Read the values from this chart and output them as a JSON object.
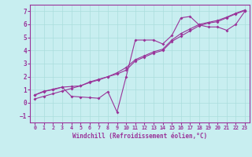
{
  "bg_color": "#c8eef0",
  "grid_color": "#aadddd",
  "line_color": "#993399",
  "xlabel": "Windchill (Refroidissement éolien,°C)",
  "xlim": [
    -0.5,
    23.5
  ],
  "ylim": [
    -1.5,
    7.5
  ],
  "xticks": [
    0,
    1,
    2,
    3,
    4,
    5,
    6,
    7,
    8,
    9,
    10,
    11,
    12,
    13,
    14,
    15,
    16,
    17,
    18,
    19,
    20,
    21,
    22,
    23
  ],
  "yticks": [
    -1,
    0,
    1,
    2,
    3,
    4,
    5,
    6,
    7
  ],
  "line1_x": [
    0,
    1,
    2,
    3,
    4,
    5,
    6,
    7,
    8,
    9,
    10,
    11,
    12,
    13,
    14,
    15,
    16,
    17,
    18,
    19,
    20,
    21,
    22,
    23
  ],
  "line1_y": [
    0.6,
    0.9,
    1.0,
    1.2,
    0.5,
    0.45,
    0.4,
    0.35,
    0.85,
    -0.7,
    2.0,
    4.8,
    4.8,
    4.8,
    4.5,
    5.15,
    6.5,
    6.6,
    5.95,
    5.8,
    5.8,
    5.55,
    6.0,
    7.0
  ],
  "line2_x": [
    0,
    1,
    2,
    3,
    4,
    5,
    6,
    7,
    8,
    9,
    10,
    11,
    12,
    13,
    14,
    15,
    16,
    17,
    18,
    19,
    20,
    21,
    22,
    23
  ],
  "line2_y": [
    0.6,
    0.85,
    1.05,
    1.2,
    1.25,
    1.3,
    1.6,
    1.8,
    2.0,
    2.2,
    2.5,
    3.2,
    3.5,
    3.8,
    4.0,
    4.7,
    5.1,
    5.5,
    5.9,
    6.1,
    6.2,
    6.5,
    6.8,
    7.05
  ],
  "line3_x": [
    0,
    1,
    2,
    3,
    4,
    5,
    6,
    7,
    8,
    9,
    10,
    11,
    12,
    13,
    14,
    15,
    16,
    17,
    18,
    19,
    20,
    21,
    22,
    23
  ],
  "line3_y": [
    0.3,
    0.5,
    0.7,
    0.9,
    1.1,
    1.3,
    1.55,
    1.75,
    2.0,
    2.3,
    2.7,
    3.3,
    3.6,
    3.9,
    4.1,
    4.8,
    5.3,
    5.65,
    6.0,
    6.15,
    6.3,
    6.55,
    6.85,
    7.1
  ],
  "xlabel_fontsize": 5.5,
  "xtick_fontsize": 4.8,
  "ytick_fontsize": 5.5,
  "linewidth": 0.8,
  "markersize": 2.0
}
